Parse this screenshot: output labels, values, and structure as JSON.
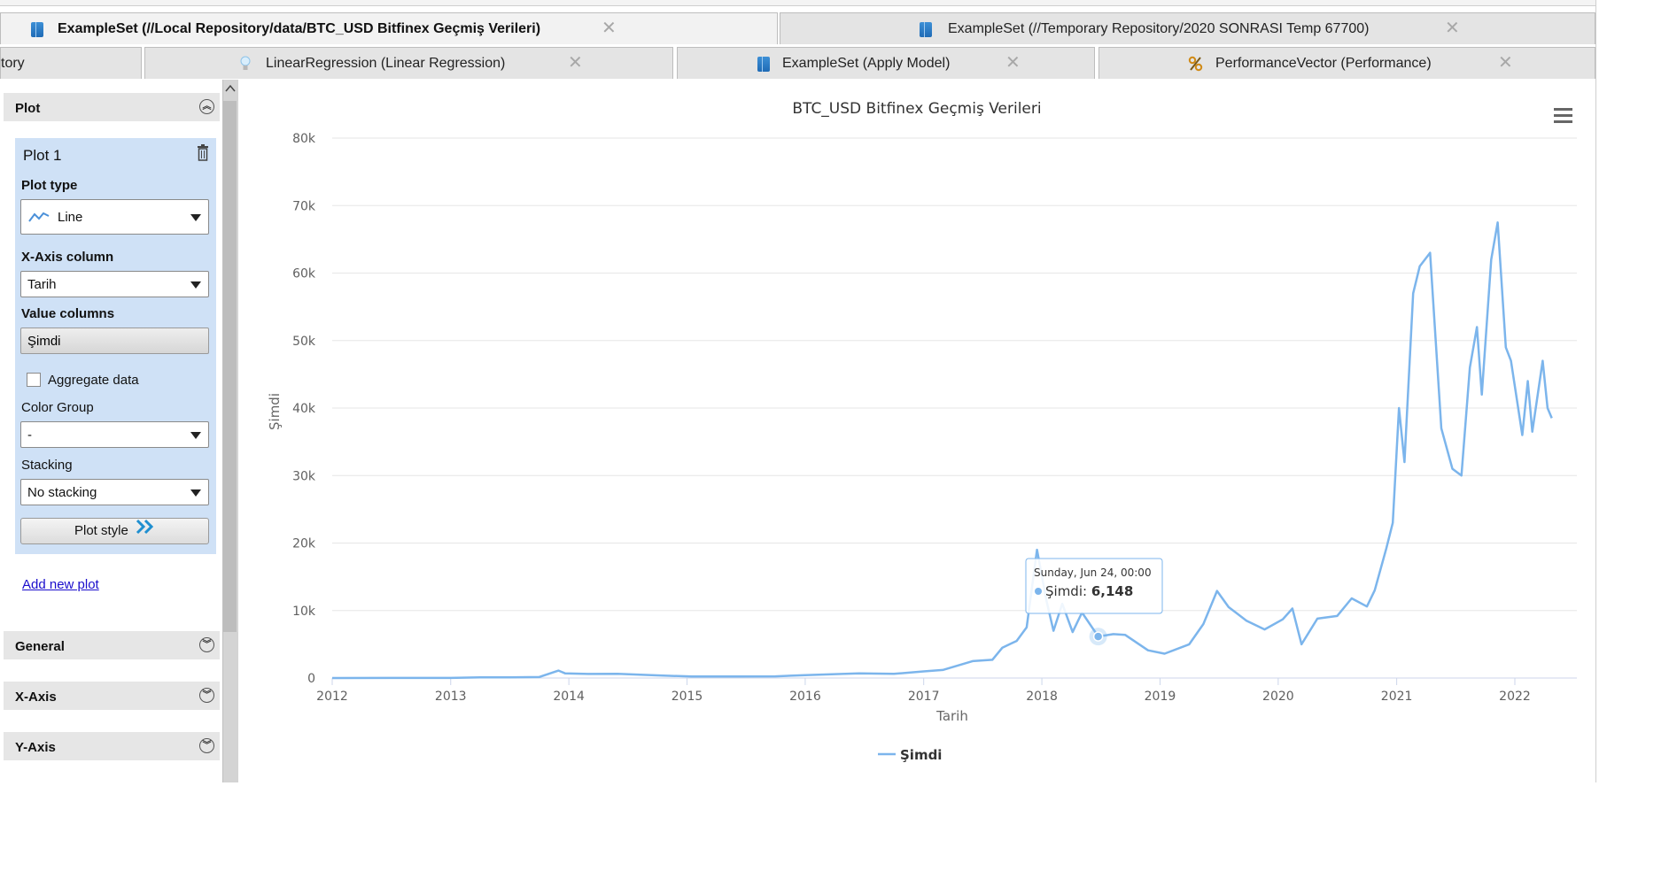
{
  "tabs_row1": [
    {
      "label": "ExampleSet (//Local Repository/data/BTC_USD Bitfinex Geçmiş Verileri)",
      "icon": "table-icon"
    },
    {
      "label": "ExampleSet (//Temporary Repository/2020 SONRASI Temp 67700)",
      "icon": "table-icon"
    }
  ],
  "tabs_row2": [
    {
      "label": "tory"
    },
    {
      "label": "LinearRegression (Linear Regression)",
      "icon": "lightbulb-icon"
    },
    {
      "label": "ExampleSet (Apply Model)",
      "icon": "table-icon"
    },
    {
      "label": "PerformanceVector (Performance)",
      "icon": "percent-icon"
    }
  ],
  "close_glyph": "✕",
  "sidebar": {
    "plot_section": "Plot",
    "plot_name": "Plot 1",
    "plot_type_label": "Plot type",
    "plot_type_value": "Line",
    "x_axis_label": "X-Axis column",
    "x_axis_value": "Tarih",
    "value_columns_label": "Value columns",
    "value_columns_value": "Şimdi",
    "aggregate_label": "Aggregate data",
    "aggregate_checked": false,
    "color_group_label": "Color Group",
    "color_group_value": "-",
    "stacking_label": "Stacking",
    "stacking_value": "No stacking",
    "plot_style_button": "Plot style",
    "add_new_plot": "Add new plot",
    "sections": [
      "General",
      "X-Axis",
      "Y-Axis"
    ]
  },
  "tooltip": {
    "date": "Sunday, Jun 24, 00:00",
    "series": "Şimdi",
    "value": "6,148"
  },
  "colors": {
    "series": "#7cb5ec",
    "link": "#1a0dcc",
    "plot_panel": "#cfe1f6"
  },
  "chart_data": {
    "type": "line",
    "title": "BTC_USD Bitfinex Geçmiş Verileri",
    "xlabel": "Tarih",
    "ylabel": "Şimdi",
    "x_ticks": [
      "2012",
      "2013",
      "2014",
      "2015",
      "2016",
      "2017",
      "2018",
      "2019",
      "2020",
      "2021",
      "2022"
    ],
    "y_ticks": [
      "0",
      "10k",
      "20k",
      "30k",
      "40k",
      "50k",
      "60k",
      "70k",
      "80k"
    ],
    "xlim": [
      "2012-01-01",
      "2022-05-01"
    ],
    "ylim": [
      0,
      80000
    ],
    "legend_position": "bottom-center",
    "grid": true,
    "series": [
      {
        "name": "Şimdi",
        "x": [
          "2012-01-01",
          "2012-07-01",
          "2013-01-01",
          "2013-04-01",
          "2013-07-01",
          "2013-10-01",
          "2013-11-30",
          "2013-12-20",
          "2014-03-01",
          "2014-06-01",
          "2014-10-01",
          "2015-01-15",
          "2015-06-01",
          "2015-10-01",
          "2016-01-01",
          "2016-06-15",
          "2016-10-01",
          "2017-01-01",
          "2017-03-01",
          "2017-06-01",
          "2017-08-01",
          "2017-09-01",
          "2017-10-15",
          "2017-11-15",
          "2017-12-17",
          "2018-01-15",
          "2018-02-06",
          "2018-03-05",
          "2018-04-06",
          "2018-05-05",
          "2018-06-24",
          "2018-08-10",
          "2018-09-15",
          "2018-11-25",
          "2019-01-15",
          "2019-04-01",
          "2019-05-15",
          "2019-06-26",
          "2019-08-01",
          "2019-09-25",
          "2019-11-20",
          "2020-01-15",
          "2020-02-14",
          "2020-03-13",
          "2020-05-01",
          "2020-07-01",
          "2020-08-15",
          "2020-10-01",
          "2020-10-25",
          "2020-11-30",
          "2020-12-20",
          "2021-01-08",
          "2021-01-25",
          "2021-02-21",
          "2021-03-13",
          "2021-04-14",
          "2021-05-19",
          "2021-06-22",
          "2021-07-20",
          "2021-08-15",
          "2021-09-06",
          "2021-09-21",
          "2021-10-20",
          "2021-11-09",
          "2021-12-04",
          "2021-12-20",
          "2022-01-24",
          "2022-02-10",
          "2022-02-24",
          "2022-03-28",
          "2022-04-12",
          "2022-04-25"
        ],
        "values": [
          5,
          7,
          13,
          100,
          90,
          140,
          1100,
          700,
          600,
          620,
          400,
          220,
          230,
          250,
          430,
          700,
          620,
          990,
          1200,
          2500,
          2700,
          4500,
          5500,
          7500,
          19000,
          11500,
          7000,
          11000,
          6800,
          9700,
          6148,
          6500,
          6400,
          4100,
          3600,
          5000,
          8000,
          12900,
          10500,
          8500,
          7200,
          8700,
          10300,
          5000,
          8800,
          9200,
          11800,
          10600,
          13000,
          19200,
          23000,
          40000,
          32000,
          57000,
          61000,
          63000,
          37000,
          31000,
          30000,
          46000,
          52000,
          42000,
          62000,
          67500,
          49000,
          47000,
          36000,
          44000,
          36500,
          47000,
          40000,
          38500
        ]
      }
    ]
  }
}
